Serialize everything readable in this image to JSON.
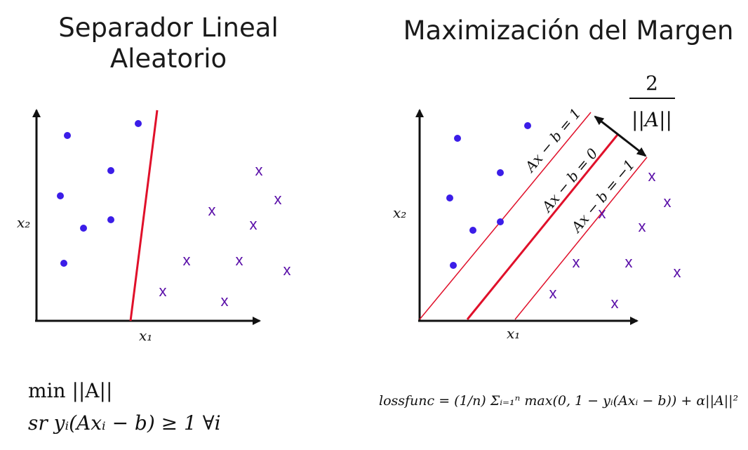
{
  "titles": {
    "left_line1": "Separador Lineal",
    "left_line2": "Aleatorio",
    "right": "Maximización del Margen"
  },
  "axes": {
    "x_label": "x₁",
    "y_label": "x₂"
  },
  "lines": {
    "upper": "Ax − b = 1",
    "middle": "Ax − b = 0",
    "lower": "Ax − b = −1"
  },
  "margin": {
    "numerator": "2",
    "denominator": "||A||"
  },
  "formulas": {
    "left_1": "min ||A||",
    "left_2": "sr  yᵢ(Axᵢ − b) ≥ 1 ∀i",
    "right": "lossfunc = (1/n) Σᵢ₌₁ⁿ max(0, 1 − yᵢ(Axᵢ − b)) + α||A||²"
  },
  "markers": {
    "cross": "x"
  },
  "colors": {
    "dot": "#3b1de8",
    "cross": "#5a0fa8",
    "line": "#e0102a",
    "axis": "#111111"
  }
}
